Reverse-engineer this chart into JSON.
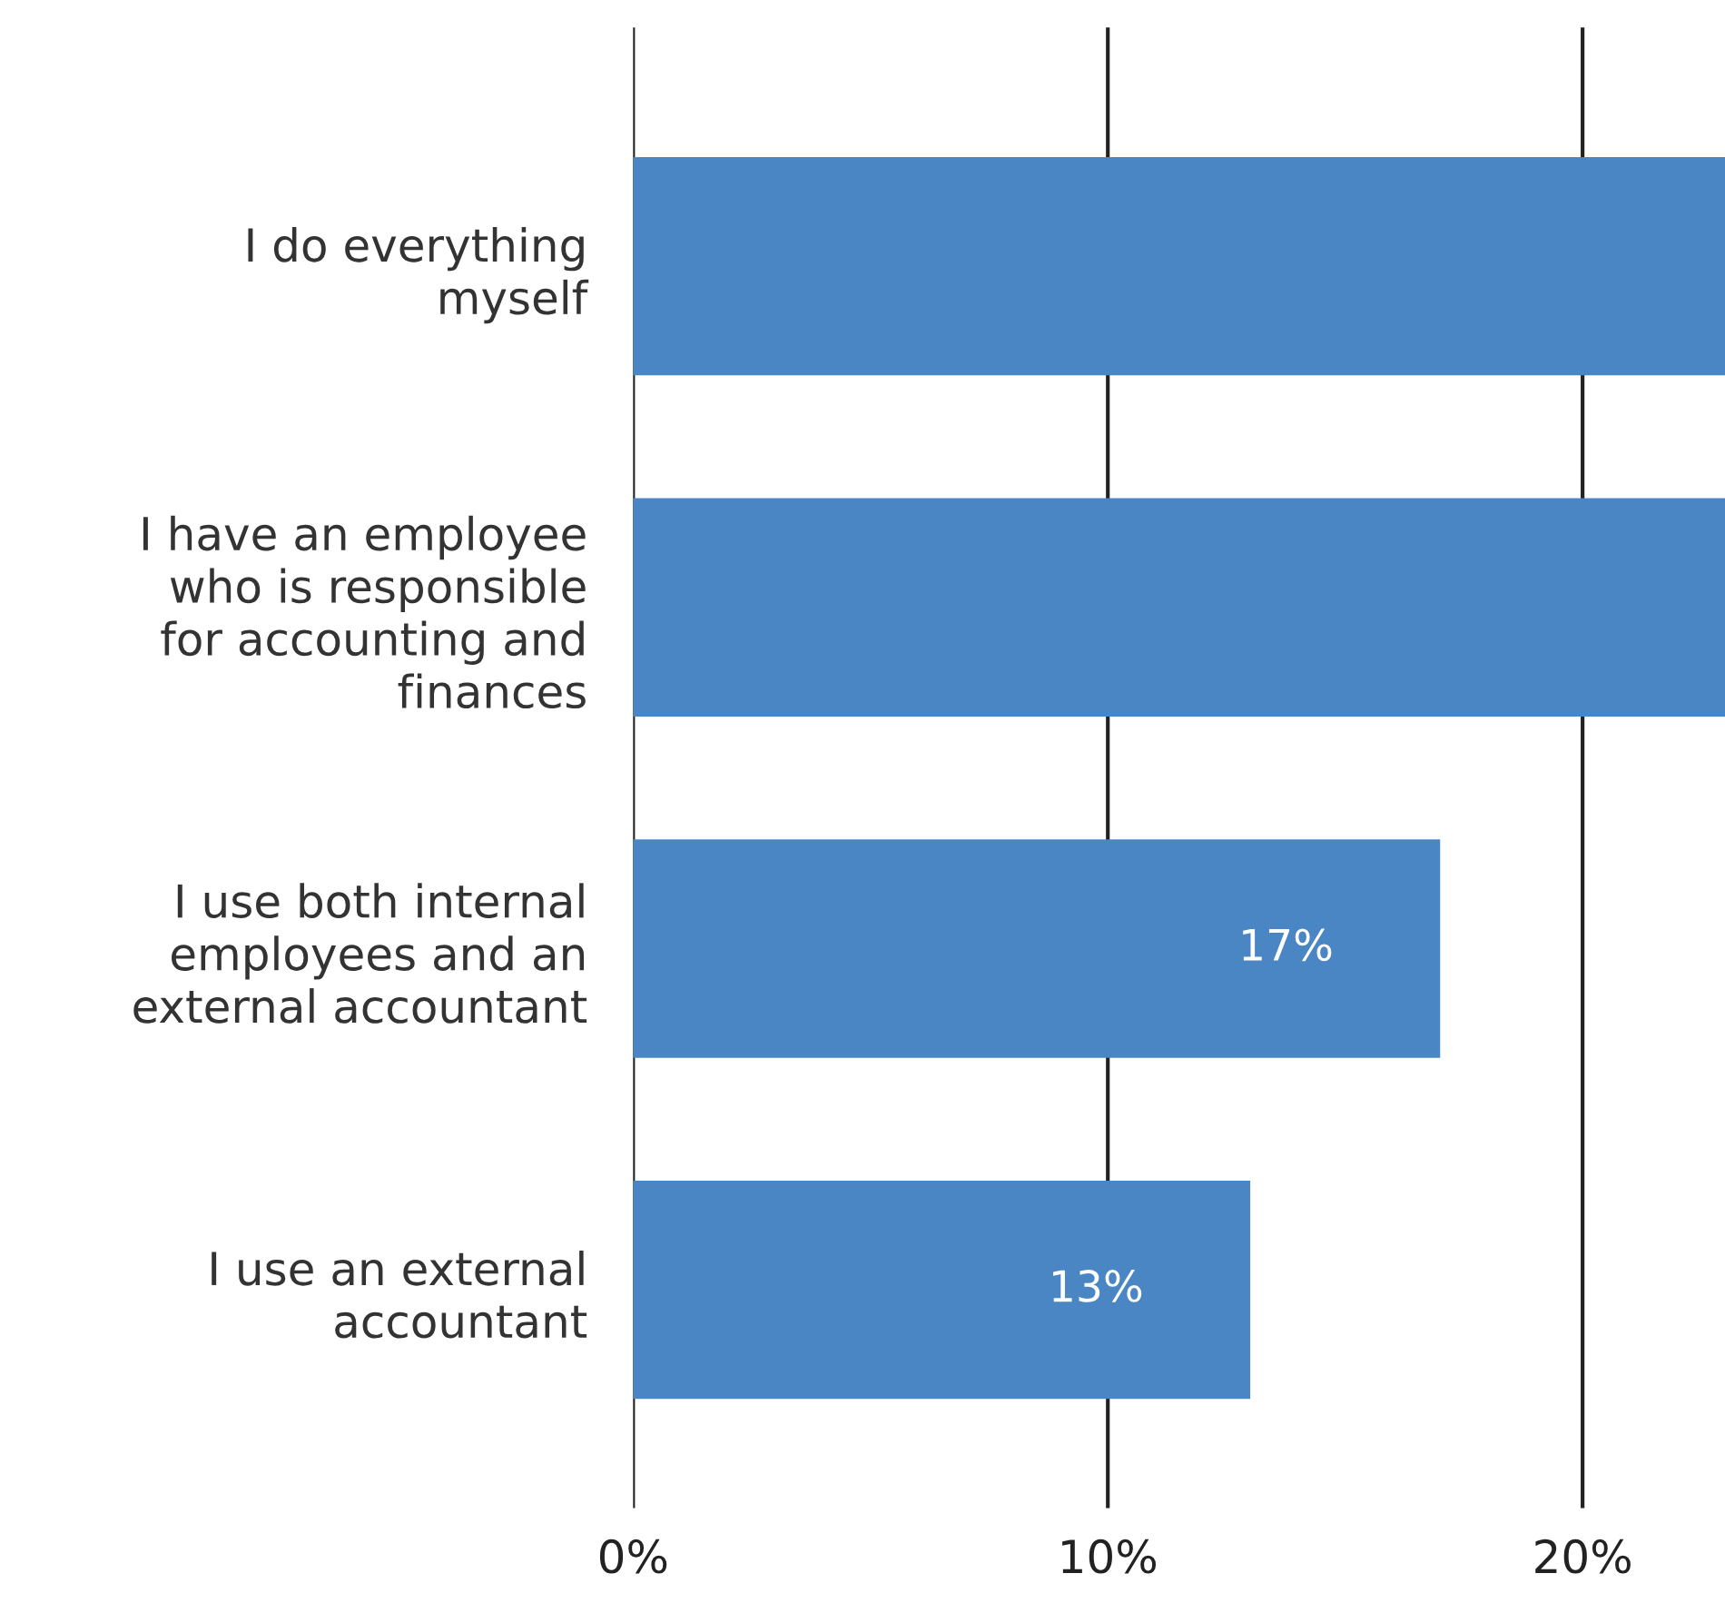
{
  "chart_data": {
    "type": "bar",
    "orientation": "horizontal",
    "categories": [
      "I do everything\nmyself",
      "I have an employee\nwho is responsible\nfor accounting and\nfinances",
      "I use both internal\nemployees and an\nexternal accountant",
      "I use an external\naccountant"
    ],
    "values": [
      23,
      23,
      17,
      13
    ],
    "value_labels": [
      null,
      null,
      "17%",
      "13%"
    ],
    "color": "#4a86c4",
    "xlim": [
      0,
      23
    ],
    "xticks": [
      {
        "value": 0,
        "label": "0%"
      },
      {
        "value": 10,
        "label": "10%"
      },
      {
        "value": 20,
        "label": "20%"
      }
    ],
    "grid": "x"
  }
}
